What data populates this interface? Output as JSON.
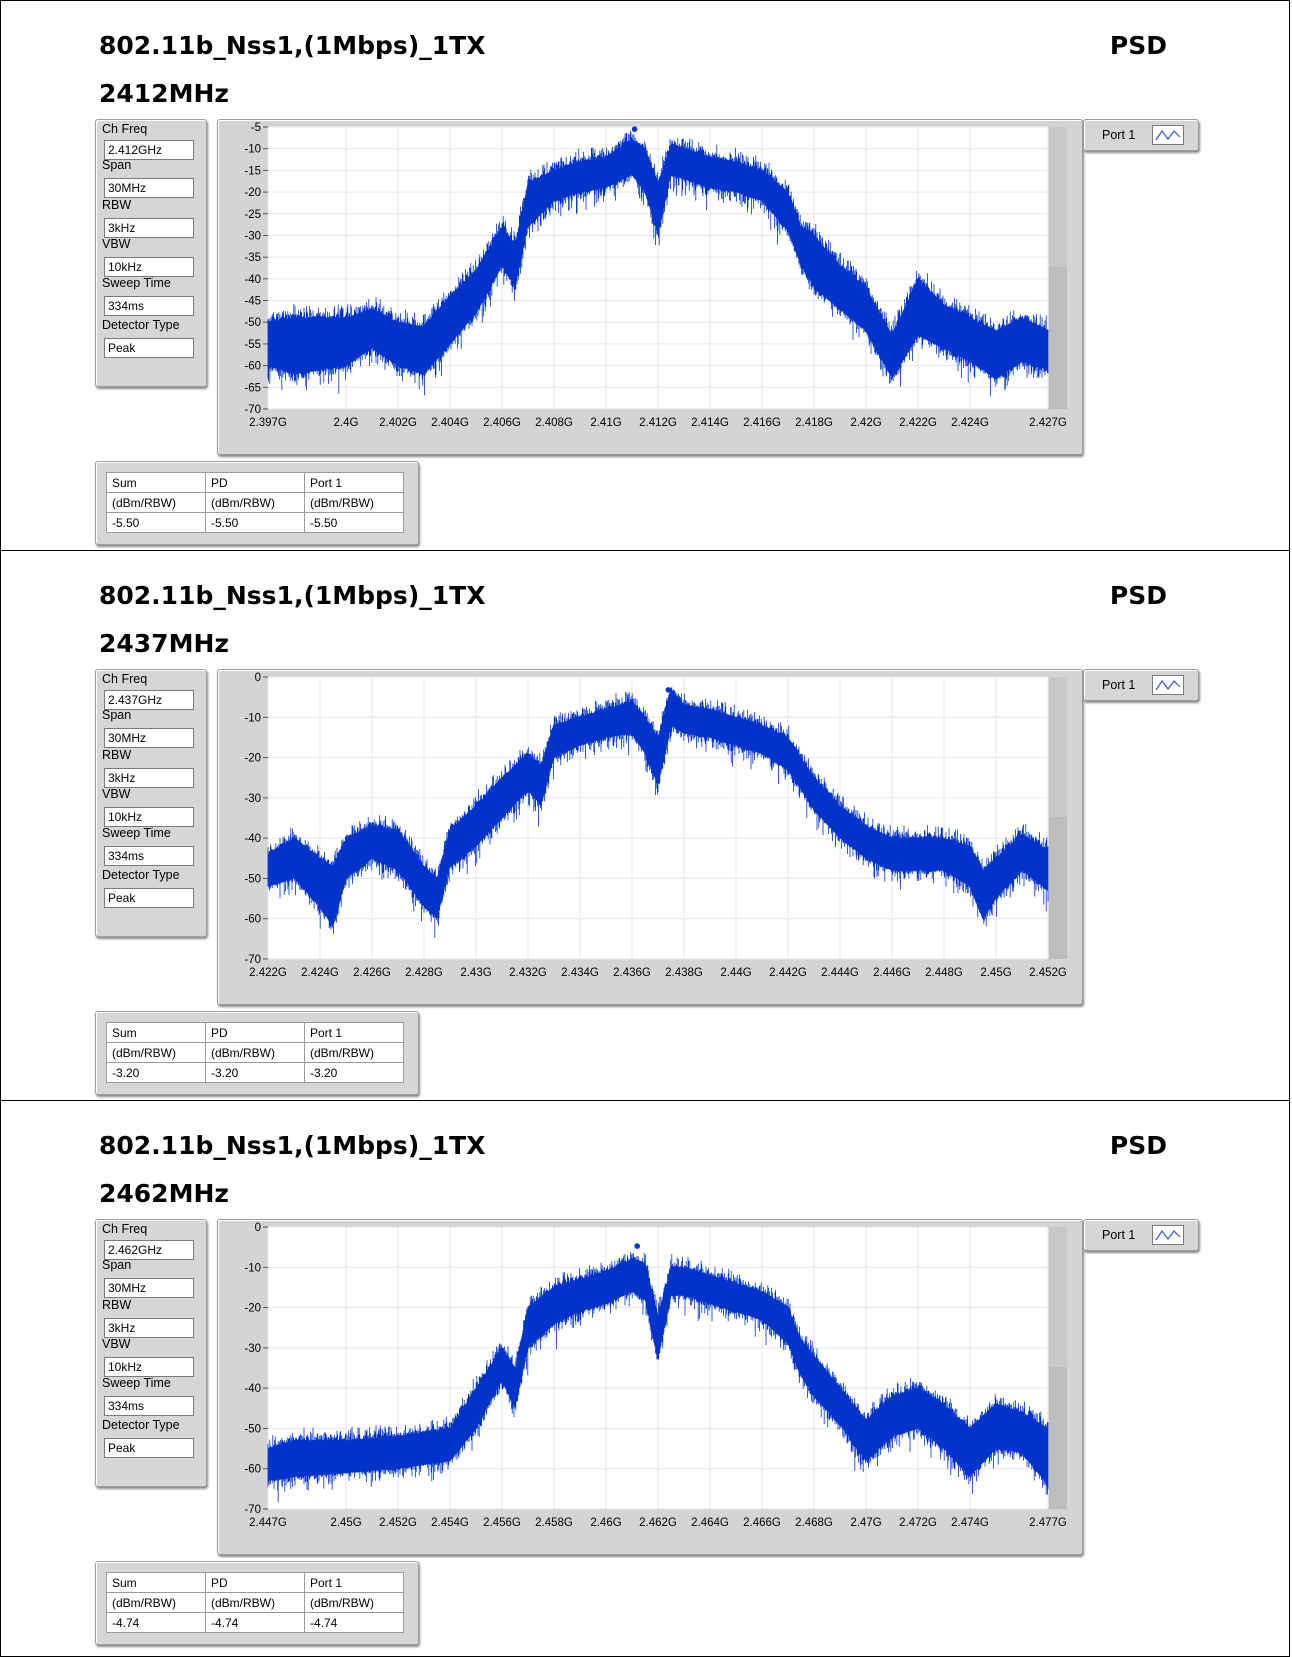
{
  "chart_data": [
    {
      "type": "line",
      "title": "802.11b_Nss1,(1Mbps)_1TX",
      "subtitle": "2412MHz",
      "label_right": "PSD",
      "settings": [
        {
          "label": "Ch Freq",
          "value": "2.412GHz"
        },
        {
          "label": "Span",
          "value": "30MHz"
        },
        {
          "label": "RBW",
          "value": "3kHz"
        },
        {
          "label": "VBW",
          "value": "10kHz"
        },
        {
          "label": "Sweep Time",
          "value": "334ms"
        },
        {
          "label": "Detector Type",
          "value": "Peak"
        }
      ],
      "legend": {
        "name": "Port 1",
        "color": "#0033cc"
      },
      "xlim": [
        2.397,
        2.427
      ],
      "ylim": [
        -70,
        -5
      ],
      "x_ticks": [
        2.397,
        2.4,
        2.402,
        2.404,
        2.406,
        2.408,
        2.41,
        2.412,
        2.414,
        2.416,
        2.418,
        2.42,
        2.422,
        2.424,
        2.427
      ],
      "x_tick_labels": [
        "2.397G",
        "2.4G",
        "2.402G",
        "2.404G",
        "2.406G",
        "2.408G",
        "2.41G",
        "2.412G",
        "2.414G",
        "2.416G",
        "2.418G",
        "2.42G",
        "2.422G",
        "2.424G",
        "2.427G"
      ],
      "y_ticks": [
        -5,
        -10,
        -15,
        -20,
        -25,
        -30,
        -35,
        -40,
        -45,
        -50,
        -55,
        -60,
        -65,
        -70
      ],
      "y_tick_labels": [
        "-5",
        "-10",
        "-15",
        "-20",
        "-25",
        "-30",
        "-35",
        "-40",
        "-45",
        "-50",
        "-55",
        "-60",
        "-65",
        "-70"
      ],
      "grid": true,
      "marker": {
        "x": 2.4111,
        "y": -5.5
      },
      "series": [
        {
          "name": "Port 1",
          "x": [
            2.397,
            2.398,
            2.4,
            2.401,
            2.402,
            2.403,
            2.404,
            2.405,
            2.406,
            2.4065,
            2.407,
            2.408,
            2.409,
            2.41,
            2.411,
            2.4115,
            2.412,
            2.4125,
            2.413,
            2.414,
            2.415,
            2.416,
            2.417,
            2.4175,
            2.418,
            2.419,
            2.42,
            2.421,
            2.422,
            2.423,
            2.424,
            2.425,
            2.426,
            2.427
          ],
          "upper": [
            -50,
            -49,
            -49,
            -47,
            -50,
            -51,
            -44,
            -38,
            -28,
            -32,
            -18,
            -15,
            -13,
            -12,
            -8,
            -10,
            -18,
            -9,
            -10,
            -12,
            -13,
            -15,
            -20,
            -28,
            -30,
            -37,
            -42,
            -53,
            -40,
            -46,
            -49,
            -52,
            -49,
            -52
          ],
          "lower": [
            -60,
            -62,
            -60,
            -56,
            -60,
            -62,
            -55,
            -48,
            -37,
            -42,
            -28,
            -22,
            -20,
            -19,
            -16,
            -20,
            -30,
            -16,
            -17,
            -19,
            -20,
            -22,
            -29,
            -37,
            -42,
            -47,
            -52,
            -63,
            -53,
            -56,
            -59,
            -63,
            -59,
            -61
          ]
        }
      ],
      "results": {
        "headers": [
          "Sum",
          "PD",
          "Port 1"
        ],
        "units": [
          "(dBm/RBW)",
          "(dBm/RBW)",
          "(dBm/RBW)"
        ],
        "values": [
          "-5.50",
          "-5.50",
          "-5.50"
        ]
      }
    },
    {
      "type": "line",
      "title": "802.11b_Nss1,(1Mbps)_1TX",
      "subtitle": "2437MHz",
      "label_right": "PSD",
      "settings": [
        {
          "label": "Ch Freq",
          "value": "2.437GHz"
        },
        {
          "label": "Span",
          "value": "30MHz"
        },
        {
          "label": "RBW",
          "value": "3kHz"
        },
        {
          "label": "VBW",
          "value": "10kHz"
        },
        {
          "label": "Sweep Time",
          "value": "334ms"
        },
        {
          "label": "Detector Type",
          "value": "Peak"
        }
      ],
      "legend": {
        "name": "Port 1",
        "color": "#0033cc"
      },
      "xlim": [
        2.422,
        2.452
      ],
      "ylim": [
        -70,
        0
      ],
      "x_ticks": [
        2.422,
        2.424,
        2.426,
        2.428,
        2.43,
        2.432,
        2.434,
        2.436,
        2.438,
        2.44,
        2.442,
        2.444,
        2.446,
        2.448,
        2.45,
        2.452
      ],
      "x_tick_labels": [
        "2.422G",
        "2.424G",
        "2.426G",
        "2.428G",
        "2.43G",
        "2.432G",
        "2.434G",
        "2.436G",
        "2.438G",
        "2.44G",
        "2.442G",
        "2.444G",
        "2.446G",
        "2.448G",
        "2.45G",
        "2.452G"
      ],
      "y_ticks": [
        0,
        -10,
        -20,
        -30,
        -40,
        -50,
        -60,
        -70
      ],
      "y_tick_labels": [
        "0",
        "-10",
        "-20",
        "-30",
        "-40",
        "-50",
        "-60",
        "-70"
      ],
      "grid": true,
      "marker": {
        "x": 2.4374,
        "y": -3.2
      },
      "series": [
        {
          "name": "Port 1",
          "x": [
            2.422,
            2.423,
            2.424,
            2.4245,
            2.425,
            2.426,
            2.427,
            2.428,
            2.4285,
            2.429,
            2.43,
            2.431,
            2.432,
            2.4325,
            2.433,
            2.434,
            2.435,
            2.436,
            2.4365,
            2.437,
            2.4375,
            2.438,
            2.439,
            2.44,
            2.441,
            2.442,
            2.443,
            2.444,
            2.445,
            2.446,
            2.447,
            2.448,
            2.449,
            2.4495,
            2.45,
            2.451,
            2.452
          ],
          "upper": [
            -44,
            -40,
            -45,
            -47,
            -40,
            -37,
            -38,
            -47,
            -50,
            -38,
            -32,
            -25,
            -19,
            -22,
            -12,
            -10,
            -8,
            -6,
            -10,
            -15,
            -3,
            -7,
            -8,
            -10,
            -12,
            -15,
            -25,
            -32,
            -37,
            -40,
            -40,
            -40,
            -42,
            -48,
            -45,
            -39,
            -43
          ],
          "lower": [
            -52,
            -50,
            -57,
            -62,
            -50,
            -45,
            -48,
            -57,
            -60,
            -47,
            -42,
            -35,
            -28,
            -32,
            -20,
            -17,
            -15,
            -14,
            -19,
            -27,
            -12,
            -14,
            -15,
            -17,
            -19,
            -23,
            -33,
            -40,
            -45,
            -48,
            -48,
            -48,
            -52,
            -60,
            -55,
            -48,
            -53
          ]
        }
      ],
      "results": {
        "headers": [
          "Sum",
          "PD",
          "Port 1"
        ],
        "units": [
          "(dBm/RBW)",
          "(dBm/RBW)",
          "(dBm/RBW)"
        ],
        "values": [
          "-3.20",
          "-3.20",
          "-3.20"
        ]
      }
    },
    {
      "type": "line",
      "title": "802.11b_Nss1,(1Mbps)_1TX",
      "subtitle": "2462MHz",
      "label_right": "PSD",
      "settings": [
        {
          "label": "Ch Freq",
          "value": "2.462GHz"
        },
        {
          "label": "Span",
          "value": "30MHz"
        },
        {
          "label": "RBW",
          "value": "3kHz"
        },
        {
          "label": "VBW",
          "value": "10kHz"
        },
        {
          "label": "Sweep Time",
          "value": "334ms"
        },
        {
          "label": "Detector Type",
          "value": "Peak"
        }
      ],
      "legend": {
        "name": "Port 1",
        "color": "#0033cc"
      },
      "xlim": [
        2.447,
        2.477
      ],
      "ylim": [
        -70,
        0
      ],
      "x_ticks": [
        2.447,
        2.45,
        2.452,
        2.454,
        2.456,
        2.458,
        2.46,
        2.462,
        2.464,
        2.466,
        2.468,
        2.47,
        2.472,
        2.474,
        2.477
      ],
      "x_tick_labels": [
        "2.447G",
        "2.45G",
        "2.452G",
        "2.454G",
        "2.456G",
        "2.458G",
        "2.46G",
        "2.462G",
        "2.464G",
        "2.466G",
        "2.468G",
        "2.47G",
        "2.472G",
        "2.474G",
        "2.477G"
      ],
      "y_ticks": [
        0,
        -10,
        -20,
        -30,
        -40,
        -50,
        -60,
        -70
      ],
      "y_tick_labels": [
        "0",
        "-10",
        "-20",
        "-30",
        "-40",
        "-50",
        "-60",
        "-70"
      ],
      "grid": true,
      "marker": {
        "x": 2.4612,
        "y": -4.74
      },
      "series": [
        {
          "name": "Port 1",
          "x": [
            2.447,
            2.448,
            2.45,
            2.452,
            2.454,
            2.455,
            2.456,
            2.4565,
            2.457,
            2.458,
            2.459,
            2.46,
            2.461,
            2.4615,
            2.462,
            2.4625,
            2.463,
            2.464,
            2.465,
            2.466,
            2.467,
            2.4675,
            2.468,
            2.469,
            2.47,
            2.471,
            2.472,
            2.473,
            2.474,
            2.475,
            2.476,
            2.477
          ],
          "upper": [
            -55,
            -53,
            -53,
            -52,
            -50,
            -40,
            -30,
            -35,
            -20,
            -15,
            -13,
            -11,
            -8,
            -9,
            -22,
            -10,
            -10,
            -12,
            -14,
            -16,
            -20,
            -28,
            -32,
            -40,
            -48,
            -42,
            -40,
            -44,
            -50,
            -44,
            -46,
            -50
          ],
          "lower": [
            -63,
            -62,
            -61,
            -60,
            -58,
            -50,
            -38,
            -45,
            -30,
            -24,
            -21,
            -19,
            -16,
            -18,
            -33,
            -17,
            -17,
            -19,
            -21,
            -23,
            -29,
            -37,
            -42,
            -49,
            -58,
            -52,
            -50,
            -55,
            -62,
            -55,
            -56,
            -64
          ]
        }
      ],
      "results": {
        "headers": [
          "Sum",
          "PD",
          "Port 1"
        ],
        "units": [
          "(dBm/RBW)",
          "(dBm/RBW)",
          "(dBm/RBW)"
        ],
        "values": [
          "-4.74",
          "-4.74",
          "-4.74"
        ]
      }
    }
  ]
}
